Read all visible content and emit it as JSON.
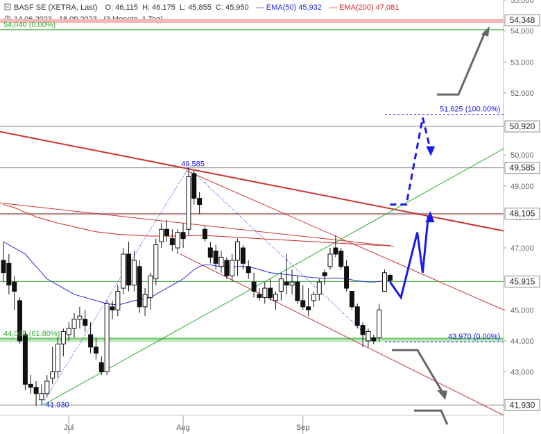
{
  "header": {
    "title": "BASF SE (XETRA, Last)",
    "open": "O: 46,115",
    "high": "H: 46,175",
    "low": "L: 45,855",
    "close": "C: 45,950",
    "ema50_label": "EMA(50)",
    "ema50_value": "45,932",
    "ema200_label": "EMA(200)",
    "ema200_value": "47,081",
    "range": "14.06.2023 - 18.09.2023",
    "period": "(3 Monate, 1 Tag)"
  },
  "colors": {
    "up": "#ffffff",
    "down": "#111111",
    "ema50": "#2a2ae0",
    "ema200": "#d22222",
    "trend_red": "#cc3333",
    "trend_green": "#33aa33",
    "projection": "#1a1aee",
    "arrow_gray": "#666666"
  },
  "chart_data": {
    "type": "candlestick",
    "ylim": [
      41.6,
      55.0
    ],
    "y_ticks": [
      "55,000",
      "54,000",
      "53,000",
      "52,000",
      "51,000",
      "50,000",
      "49,000",
      "48,000",
      "47,000",
      "46,000",
      "45,000",
      "44,000",
      "43,000"
    ],
    "x_ticks": [
      {
        "label": "Jul",
        "index": 12
      },
      {
        "label": "Aug",
        "index": 33
      },
      {
        "label": "Sep",
        "index": 55
      }
    ],
    "level_labels": [
      {
        "label": "54,348",
        "y": 54.348
      },
      {
        "label": "50,920",
        "y": 50.92
      },
      {
        "label": "49,585",
        "y": 49.585
      },
      {
        "label": "48,105",
        "y": 48.105
      },
      {
        "label": "45,915",
        "y": 45.915
      },
      {
        "label": "41,930",
        "y": 41.93
      }
    ],
    "annotations": [
      {
        "text": "49.585",
        "index": 32,
        "y": 49.585
      },
      {
        "text": "41.930",
        "index": 7,
        "y": 41.93
      },
      {
        "text": "44,065 (61.80%)",
        "index": 0,
        "y": 44.065
      },
      {
        "text": "43,970 (0.00%)",
        "index": 65,
        "y": 43.97
      },
      {
        "text": "51,625 (100.00%)",
        "index": 65,
        "y": 51.625
      },
      {
        "text": "54,040 (0.00%)",
        "index": 0,
        "y": 54.04
      }
    ],
    "candles": [
      {
        "o": 46.6,
        "h": 47.2,
        "l": 45.9,
        "c": 46.2
      },
      {
        "o": 46.5,
        "h": 46.8,
        "l": 45.5,
        "c": 45.8
      },
      {
        "o": 45.9,
        "h": 46.1,
        "l": 45.0,
        "c": 45.6
      },
      {
        "o": 45.3,
        "h": 45.4,
        "l": 43.9,
        "c": 44.0
      },
      {
        "o": 44.2,
        "h": 44.3,
        "l": 42.4,
        "c": 42.6
      },
      {
        "o": 42.6,
        "h": 42.9,
        "l": 42.3,
        "c": 42.5
      },
      {
        "o": 42.5,
        "h": 42.7,
        "l": 41.9,
        "c": 42.3
      },
      {
        "o": 42.1,
        "h": 42.6,
        "l": 41.93,
        "c": 42.3
      },
      {
        "o": 42.3,
        "h": 42.9,
        "l": 42.2,
        "c": 42.7
      },
      {
        "o": 42.8,
        "h": 43.8,
        "l": 42.6,
        "c": 43.0
      },
      {
        "o": 43.0,
        "h": 44.1,
        "l": 42.8,
        "c": 43.9
      },
      {
        "o": 43.9,
        "h": 44.4,
        "l": 43.5,
        "c": 44.3
      },
      {
        "o": 44.2,
        "h": 44.6,
        "l": 44.0,
        "c": 44.4
      },
      {
        "o": 44.4,
        "h": 44.9,
        "l": 44.1,
        "c": 44.7
      },
      {
        "o": 44.7,
        "h": 45.1,
        "l": 44.4,
        "c": 44.8
      },
      {
        "o": 44.7,
        "h": 45.0,
        "l": 44.3,
        "c": 44.5
      },
      {
        "o": 44.2,
        "h": 44.6,
        "l": 43.6,
        "c": 43.8
      },
      {
        "o": 43.8,
        "h": 44.1,
        "l": 43.4,
        "c": 43.6
      },
      {
        "o": 43.3,
        "h": 43.5,
        "l": 42.9,
        "c": 43.0
      },
      {
        "o": 43.0,
        "h": 45.3,
        "l": 42.9,
        "c": 45.2
      },
      {
        "o": 45.1,
        "h": 45.3,
        "l": 44.7,
        "c": 45.0
      },
      {
        "o": 45.0,
        "h": 45.8,
        "l": 44.8,
        "c": 45.6
      },
      {
        "o": 45.7,
        "h": 47.0,
        "l": 45.5,
        "c": 46.8
      },
      {
        "o": 46.8,
        "h": 47.2,
        "l": 45.6,
        "c": 45.8
      },
      {
        "o": 45.8,
        "h": 46.9,
        "l": 45.6,
        "c": 46.6
      },
      {
        "o": 46.4,
        "h": 46.6,
        "l": 44.9,
        "c": 45.1
      },
      {
        "o": 45.1,
        "h": 45.7,
        "l": 44.8,
        "c": 45.5
      },
      {
        "o": 45.4,
        "h": 46.2,
        "l": 45.0,
        "c": 46.1
      },
      {
        "o": 46.0,
        "h": 47.3,
        "l": 45.8,
        "c": 47.1
      },
      {
        "o": 47.2,
        "h": 47.8,
        "l": 47.0,
        "c": 47.6
      },
      {
        "o": 47.6,
        "h": 47.9,
        "l": 47.2,
        "c": 47.4
      },
      {
        "o": 47.3,
        "h": 47.6,
        "l": 46.9,
        "c": 47.1
      },
      {
        "o": 47.0,
        "h": 47.6,
        "l": 46.8,
        "c": 47.5
      },
      {
        "o": 47.5,
        "h": 47.8,
        "l": 47.0,
        "c": 47.3
      },
      {
        "o": 47.6,
        "h": 49.585,
        "l": 47.4,
        "c": 49.3
      },
      {
        "o": 49.4,
        "h": 49.5,
        "l": 48.4,
        "c": 48.6
      },
      {
        "o": 48.6,
        "h": 48.8,
        "l": 48.1,
        "c": 48.4
      },
      {
        "o": 47.6,
        "h": 47.7,
        "l": 47.2,
        "c": 47.3
      },
      {
        "o": 47.0,
        "h": 47.2,
        "l": 46.5,
        "c": 46.7
      },
      {
        "o": 46.9,
        "h": 47.1,
        "l": 46.3,
        "c": 46.5
      },
      {
        "o": 46.4,
        "h": 46.9,
        "l": 46.2,
        "c": 46.7
      },
      {
        "o": 46.6,
        "h": 46.7,
        "l": 46.0,
        "c": 46.1
      },
      {
        "o": 46.1,
        "h": 46.8,
        "l": 45.9,
        "c": 46.6
      },
      {
        "o": 46.6,
        "h": 47.3,
        "l": 46.1,
        "c": 47.2
      },
      {
        "o": 47.0,
        "h": 47.1,
        "l": 46.3,
        "c": 46.5
      },
      {
        "o": 46.4,
        "h": 46.6,
        "l": 46.0,
        "c": 46.2
      },
      {
        "o": 45.9,
        "h": 46.2,
        "l": 45.4,
        "c": 45.6
      },
      {
        "o": 45.5,
        "h": 45.7,
        "l": 45.3,
        "c": 45.4
      },
      {
        "o": 45.4,
        "h": 45.9,
        "l": 45.2,
        "c": 45.7
      },
      {
        "o": 45.7,
        "h": 46.0,
        "l": 45.3,
        "c": 45.4
      },
      {
        "o": 45.3,
        "h": 45.6,
        "l": 45.0,
        "c": 45.5
      },
      {
        "o": 45.6,
        "h": 46.2,
        "l": 45.3,
        "c": 46.0
      },
      {
        "o": 45.9,
        "h": 46.8,
        "l": 45.5,
        "c": 45.8
      },
      {
        "o": 45.8,
        "h": 46.3,
        "l": 45.5,
        "c": 45.9
      },
      {
        "o": 45.9,
        "h": 46.1,
        "l": 45.2,
        "c": 45.3
      },
      {
        "o": 45.3,
        "h": 45.8,
        "l": 45.0,
        "c": 45.1
      },
      {
        "o": 45.1,
        "h": 45.7,
        "l": 44.8,
        "c": 45.0
      },
      {
        "o": 45.3,
        "h": 45.6,
        "l": 45.1,
        "c": 45.5
      },
      {
        "o": 45.5,
        "h": 46.0,
        "l": 45.3,
        "c": 45.9
      },
      {
        "o": 46.2,
        "h": 46.3,
        "l": 45.8,
        "c": 46.1
      },
      {
        "o": 46.4,
        "h": 47.0,
        "l": 46.3,
        "c": 46.8
      },
      {
        "o": 47.0,
        "h": 47.4,
        "l": 46.7,
        "c": 46.8
      },
      {
        "o": 46.9,
        "h": 47.0,
        "l": 46.3,
        "c": 46.4
      },
      {
        "o": 46.4,
        "h": 46.6,
        "l": 45.6,
        "c": 45.7
      },
      {
        "o": 45.6,
        "h": 45.6,
        "l": 45.0,
        "c": 45.1
      },
      {
        "o": 45.1,
        "h": 45.2,
        "l": 44.4,
        "c": 44.5
      },
      {
        "o": 44.5,
        "h": 44.6,
        "l": 43.8,
        "c": 44.2
      },
      {
        "o": 44.0,
        "h": 44.4,
        "l": 43.8,
        "c": 44.3
      },
      {
        "o": 44.1,
        "h": 44.2,
        "l": 43.9,
        "c": 44.0
      },
      {
        "o": 44.1,
        "h": 45.2,
        "l": 43.97,
        "c": 45.0
      },
      {
        "o": 45.6,
        "h": 46.3,
        "l": 45.6,
        "c": 46.2
      },
      {
        "o": 46.115,
        "h": 46.175,
        "l": 45.855,
        "c": 45.95
      }
    ],
    "ema50": [
      47.2,
      47.1,
      47.0,
      46.9,
      46.8,
      46.6,
      46.4,
      46.2,
      46.0,
      45.9,
      45.8,
      45.7,
      45.6,
      45.5,
      45.45,
      45.4,
      45.35,
      45.3,
      45.25,
      45.2,
      45.18,
      45.16,
      45.2,
      45.25,
      45.3,
      45.32,
      45.35,
      45.4,
      45.5,
      45.6,
      45.7,
      45.8,
      45.9,
      46.0,
      46.15,
      46.3,
      46.4,
      46.45,
      46.45,
      46.42,
      46.4,
      46.38,
      46.38,
      46.4,
      46.4,
      46.38,
      46.35,
      46.3,
      46.25,
      46.2,
      46.18,
      46.16,
      46.14,
      46.12,
      46.1,
      46.08,
      46.06,
      46.04,
      46.03,
      46.02,
      46.02,
      46.03,
      46.02,
      46.0,
      45.97,
      45.94,
      45.92,
      45.9,
      45.9,
      45.92,
      45.93,
      45.932
    ],
    "ema200": [
      48.4,
      48.35,
      48.3,
      48.22,
      48.15,
      48.08,
      48.0,
      47.95,
      47.9,
      47.85,
      47.8,
      47.76,
      47.72,
      47.68,
      47.64,
      47.6,
      47.56,
      47.52,
      47.5,
      47.48,
      47.46,
      47.44,
      47.43,
      47.42,
      47.41,
      47.4,
      47.39,
      47.38,
      47.38,
      47.38,
      47.38,
      47.38,
      47.38,
      47.38,
      47.39,
      47.4,
      47.4,
      47.4,
      47.39,
      47.38,
      47.37,
      47.36,
      47.35,
      47.34,
      47.33,
      47.32,
      47.31,
      47.3,
      47.29,
      47.28,
      47.27,
      47.26,
      47.25,
      47.24,
      47.23,
      47.22,
      47.21,
      47.2,
      47.19,
      47.18,
      47.17,
      47.16,
      47.15,
      47.14,
      47.13,
      47.12,
      47.11,
      47.1,
      47.09,
      47.085,
      47.082,
      47.081
    ],
    "horizontal_levels": [
      54.348,
      54.04,
      50.92,
      49.585,
      48.105,
      45.915,
      44.065,
      43.97,
      41.93
    ],
    "projection_path": [
      [
        71,
        45.9
      ],
      [
        73,
        45.4
      ],
      [
        76,
        47.5
      ],
      [
        77,
        46.2
      ],
      [
        78,
        48.0
      ],
      [
        78.4,
        48.05
      ]
    ],
    "projection_dashed": [
      [
        71,
        48.4
      ],
      [
        74,
        48.4
      ],
      [
        77,
        51.2
      ],
      [
        78.5,
        50.1
      ]
    ]
  }
}
